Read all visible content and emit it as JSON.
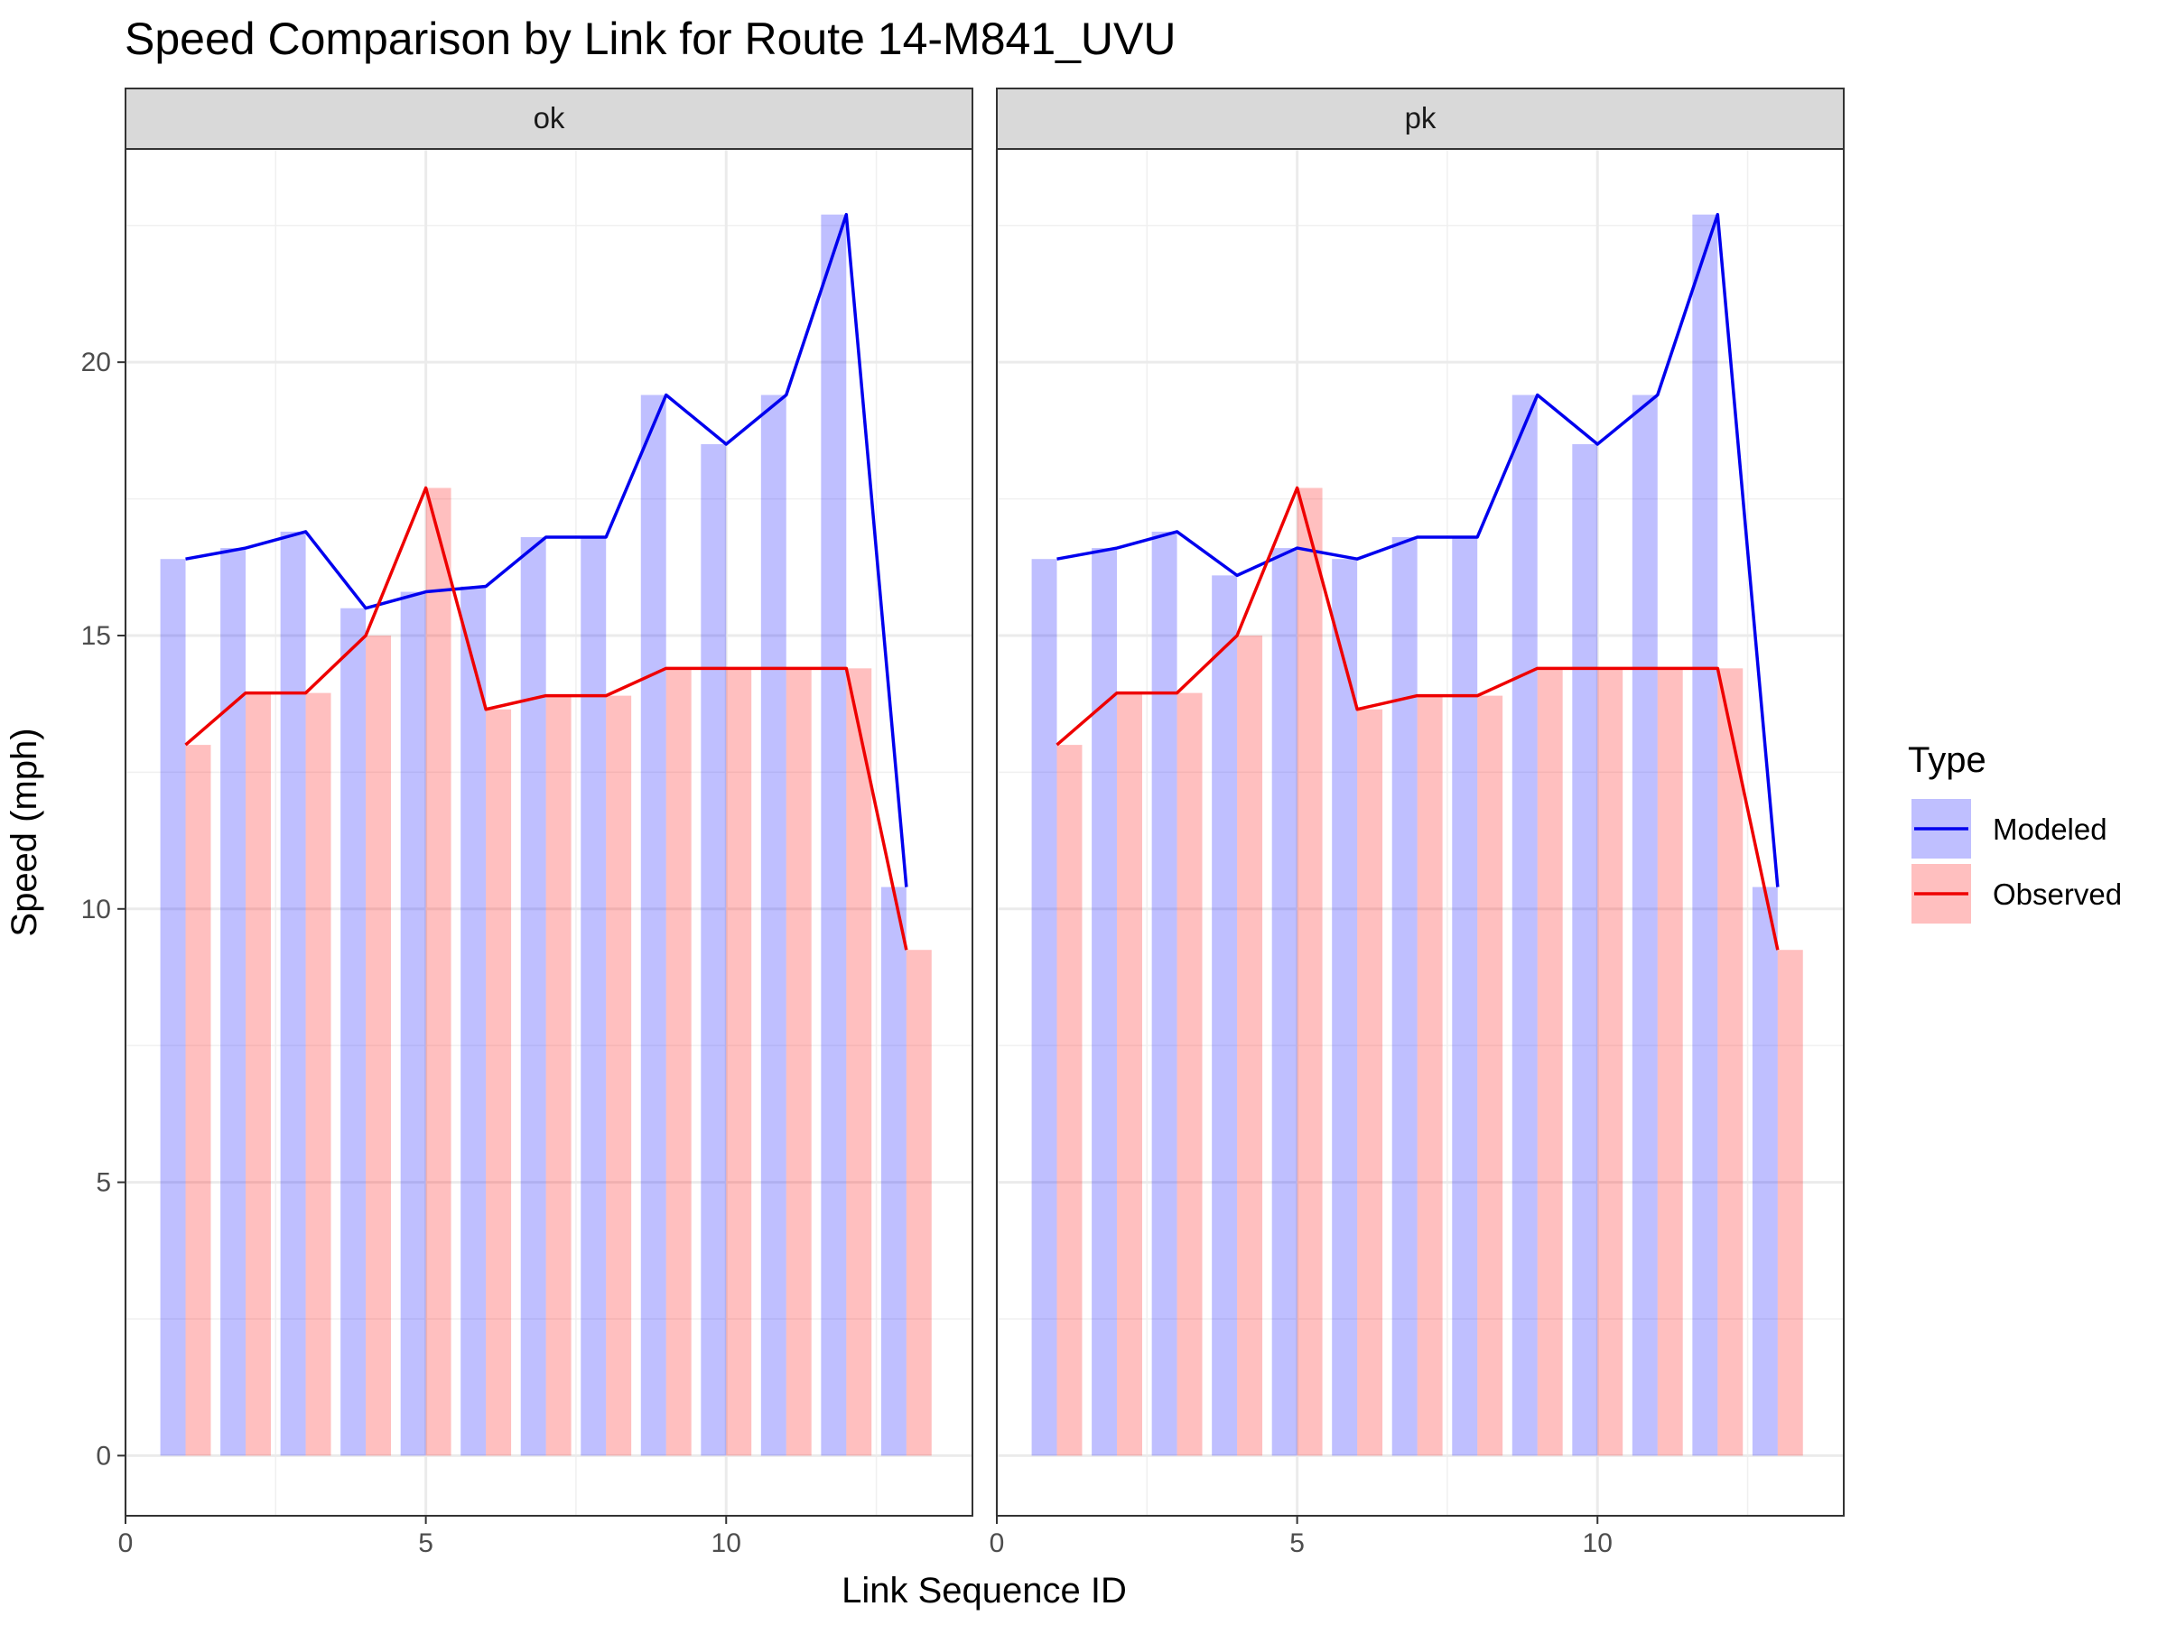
{
  "chart_data": {
    "type": "bar",
    "title": "Speed Comparison by Link for Route 14-M841_UVU",
    "xlabel": "Link Sequence ID",
    "ylabel": "Speed (mph)",
    "xlim": [
      0,
      14.1
    ],
    "ylim": [
      -1.1,
      23.9
    ],
    "x_ticks": [
      0,
      5,
      10
    ],
    "y_ticks": [
      0,
      5,
      10,
      15,
      20
    ],
    "grid": true,
    "legend": {
      "title": "Type",
      "placement": "right"
    },
    "colors": {
      "Modeled": "#0000ee",
      "Observed": "#ee0000",
      "Modeled_bar": "#b3b3f8",
      "Observed_bar": "#ffb3b3"
    },
    "panels": [
      {
        "label": "ok",
        "x": [
          1,
          2,
          3,
          4,
          5,
          6,
          7,
          8,
          9,
          10,
          11,
          12,
          13
        ],
        "series": [
          {
            "name": "Modeled",
            "values": [
              16.4,
              16.6,
              16.9,
              15.5,
              15.8,
              15.9,
              16.8,
              16.8,
              19.4,
              18.5,
              19.4,
              22.7,
              10.4
            ]
          },
          {
            "name": "Observed",
            "values": [
              13.0,
              13.95,
              13.95,
              15.0,
              17.7,
              13.65,
              13.9,
              13.9,
              14.4,
              14.4,
              14.4,
              14.4,
              9.25
            ]
          }
        ]
      },
      {
        "label": "pk",
        "x": [
          1,
          2,
          3,
          4,
          5,
          6,
          7,
          8,
          9,
          10,
          11,
          12,
          13
        ],
        "series": [
          {
            "name": "Modeled",
            "values": [
              16.4,
              16.6,
              16.9,
              16.1,
              16.6,
              16.4,
              16.8,
              16.8,
              19.4,
              18.5,
              19.4,
              22.7,
              10.4
            ]
          },
          {
            "name": "Observed",
            "values": [
              13.0,
              13.95,
              13.95,
              15.0,
              17.7,
              13.65,
              13.9,
              13.9,
              14.4,
              14.4,
              14.4,
              14.4,
              9.25
            ]
          }
        ]
      }
    ]
  }
}
